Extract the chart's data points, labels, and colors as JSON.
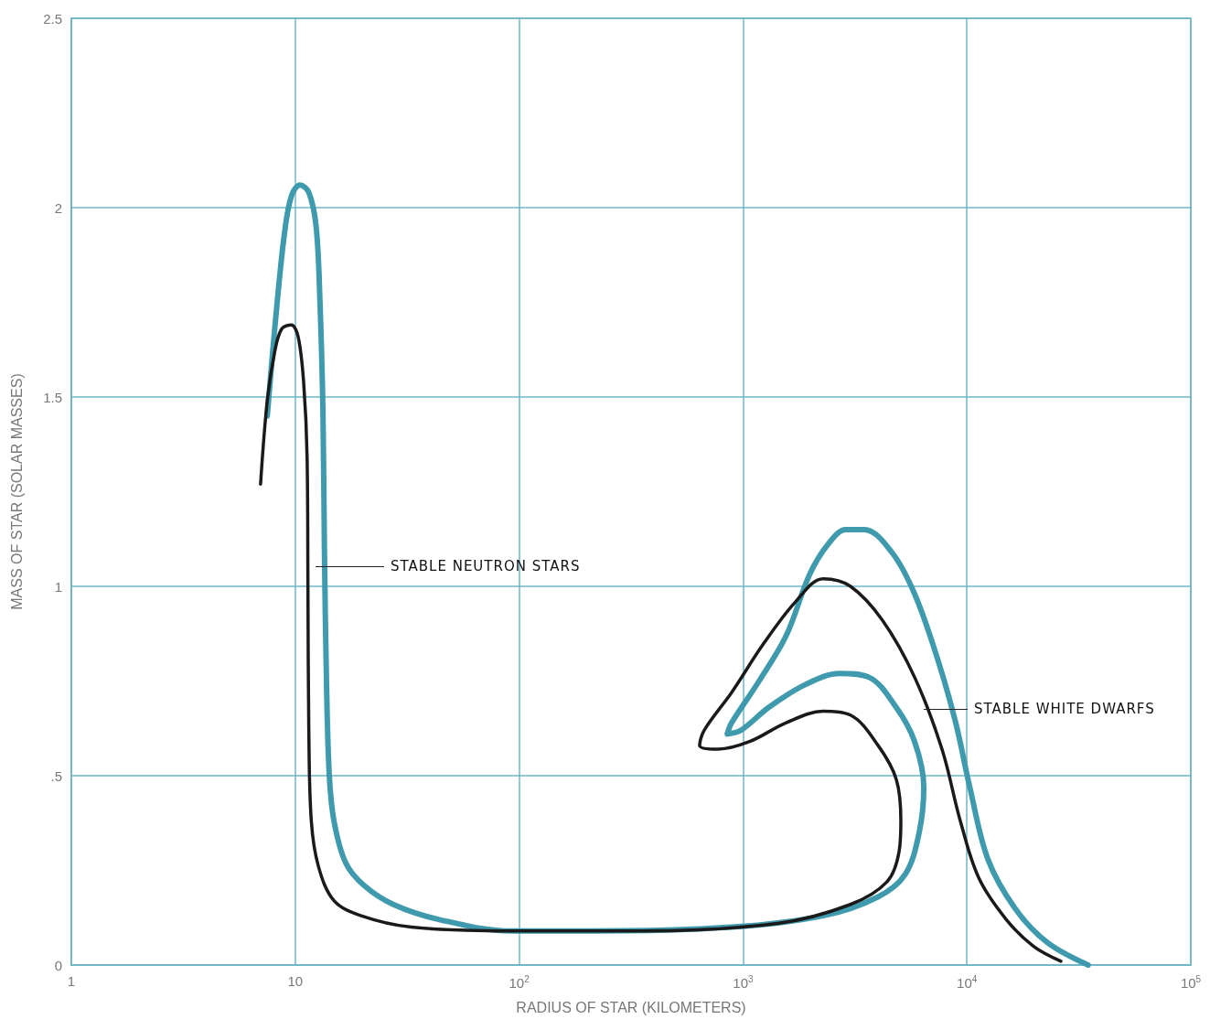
{
  "chart_data": {
    "type": "line",
    "xlabel": "RADIUS OF STAR (KILOMETERS)",
    "ylabel": "MASS OF STAR (SOLAR MASSES)",
    "log": "x",
    "xlim": [
      1,
      100000
    ],
    "ylim": [
      0,
      2.5
    ],
    "xticks": [
      1,
      10,
      {
        "value": 100,
        "label": "10$^{2}$"
      },
      {
        "value": 1000,
        "label": "10$^{3}$"
      },
      {
        "value": 10000,
        "label": "10$^{4}$"
      },
      {
        "value": 100000,
        "label": "10$^{5}$"
      }
    ],
    "yticks": [
      0,
      {
        "value": 0.5,
        "label": ".5"
      },
      1,
      1.5,
      2,
      2.5
    ],
    "grid": true,
    "marker": "none",
    "line_style": "solid",
    "series": [
      {
        "color": "#3f9aad",
        "x": [
          7.5,
          8.1,
          8.9,
          9.6,
          10.5,
          11.5,
          12.4,
          12.9,
          13.3,
          13.5,
          13.8,
          14.2,
          14.9,
          16.8,
          20.3,
          27.4,
          44,
          93,
          217,
          890,
          2280,
          4010,
          5310,
          6120,
          6420,
          5840,
          4840,
          3650,
          2700,
          1890,
          1300,
          980,
          850,
          890,
          1180,
          1560,
          1980,
          2390,
          2880,
          3480,
          4620,
          5840,
          7380,
          8910,
          10300,
          12400,
          16400,
          22800,
          34800
        ],
        "values": [
          1.45,
          1.68,
          1.92,
          2.03,
          2.06,
          2.04,
          1.95,
          1.75,
          1.46,
          1.1,
          0.74,
          0.5,
          0.38,
          0.27,
          0.21,
          0.16,
          0.12,
          0.09,
          0.09,
          0.1,
          0.13,
          0.18,
          0.24,
          0.35,
          0.47,
          0.59,
          0.68,
          0.76,
          0.77,
          0.74,
          0.68,
          0.62,
          0.61,
          0.64,
          0.75,
          0.87,
          1.03,
          1.11,
          1.15,
          1.15,
          1.09,
          0.98,
          0.81,
          0.64,
          0.47,
          0.28,
          0.15,
          0.06,
          0
        ]
      },
      {
        "color": "#1a1a1a",
        "x": [
          7,
          7.5,
          8.1,
          8.7,
          9.6,
          10.3,
          10.9,
          11.3,
          11.4,
          11.5,
          11.8,
          12.7,
          14.9,
          19.7,
          33,
          93,
          347,
          1430,
          3020,
          4400,
          4980,
          5070,
          4840,
          4010,
          3020,
          2280,
          1560,
          1070,
          773,
          640,
          671,
          890,
          1240,
          1720,
          2280,
          3020,
          4200,
          5840,
          7740,
          9350,
          11300,
          15000,
          19800,
          26300
        ],
        "values": [
          1.27,
          1.49,
          1.62,
          1.68,
          1.69,
          1.66,
          1.54,
          1.34,
          0.98,
          0.62,
          0.38,
          0.26,
          0.17,
          0.13,
          0.1,
          0.09,
          0.09,
          0.11,
          0.16,
          0.22,
          0.3,
          0.38,
          0.49,
          0.58,
          0.66,
          0.67,
          0.64,
          0.59,
          0.57,
          0.58,
          0.62,
          0.72,
          0.85,
          0.96,
          1.02,
          1.0,
          0.91,
          0.76,
          0.57,
          0.38,
          0.23,
          0.12,
          0.05,
          0.01
        ]
      }
    ],
    "annotations": [
      "STABLE NEUTRON STARS",
      "STABLE WHITE DWARFS"
    ]
  }
}
